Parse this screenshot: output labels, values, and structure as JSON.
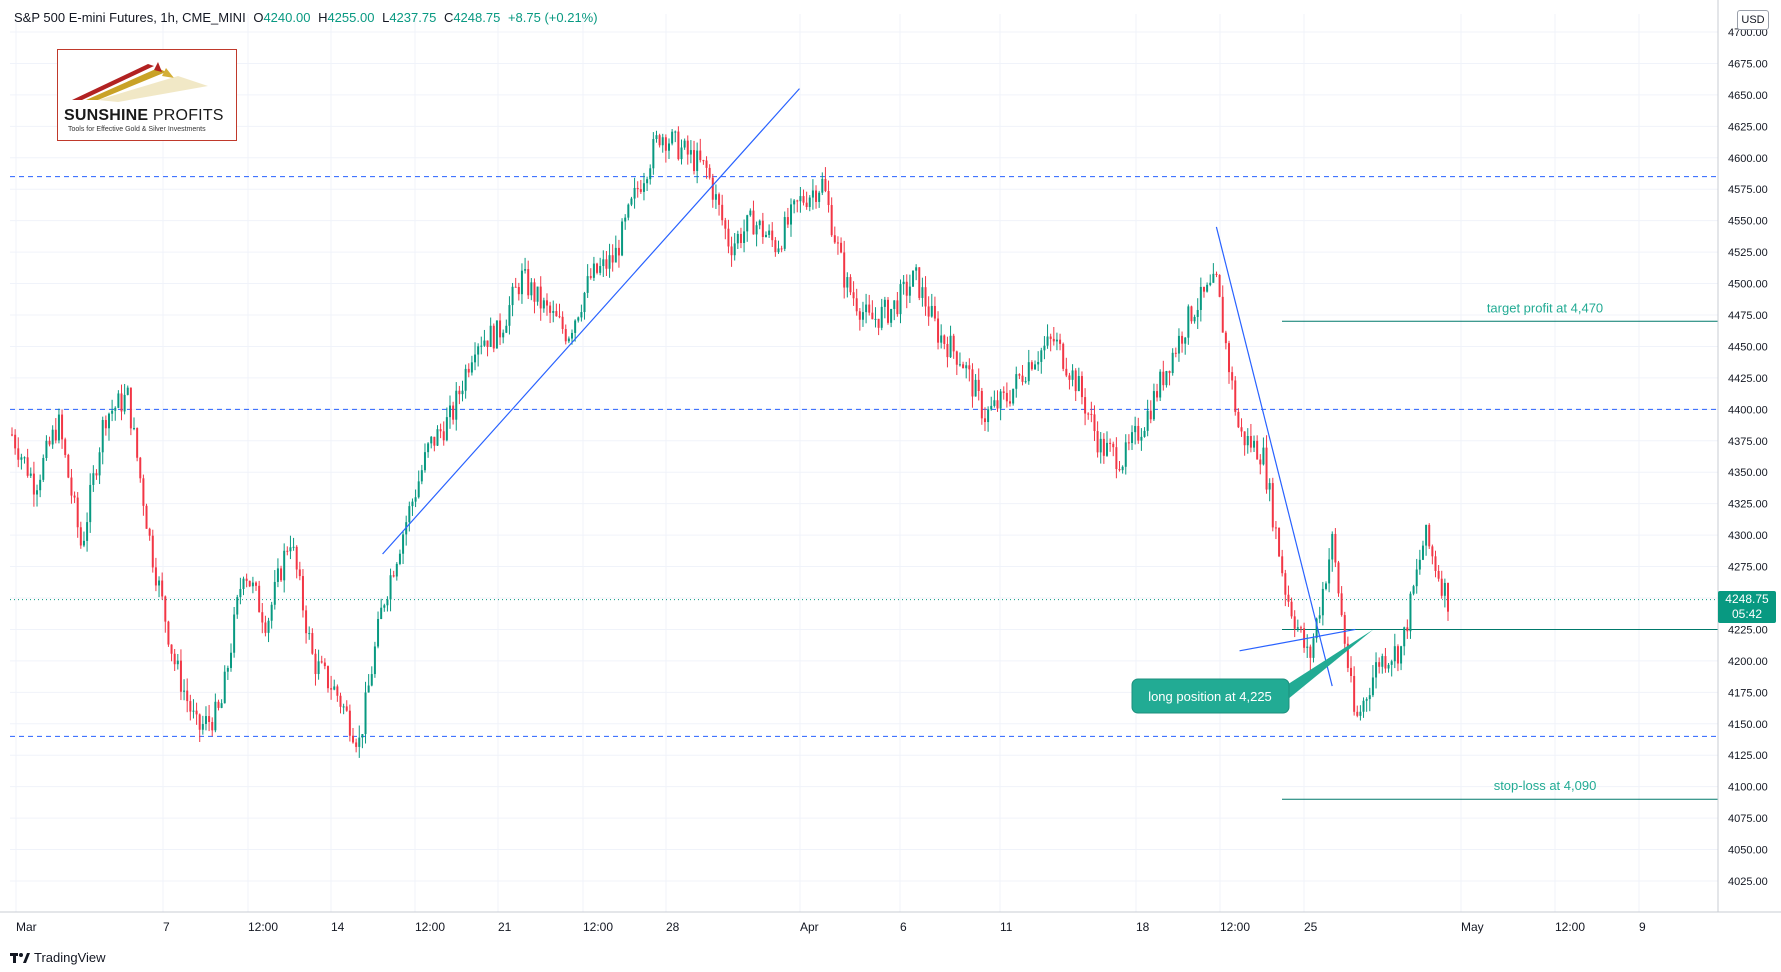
{
  "header": {
    "symbol": "S&P 500 E-mini Futures, 1h, CME_MINI",
    "o_label": "O",
    "o_value": "4240.00",
    "h_label": "H",
    "h_value": "4255.00",
    "l_label": "L",
    "l_value": "4237.75",
    "c_label": "C",
    "c_value": "4248.75",
    "change": "+8.75 (+0.21%)"
  },
  "currency_button": "USD",
  "logo": {
    "title_bold": "SUNSHINE",
    "title_light": " PROFITS",
    "subtitle": "Tools for Effective Gold & Silver Investments"
  },
  "footer": {
    "brand": "TradingView"
  },
  "last_price": {
    "value": "4248.75",
    "countdown": "05:42"
  },
  "colors": {
    "up": "#089981",
    "down": "#f23645",
    "trend": "#2962ff",
    "level": "#2962ff",
    "annotation": "#22ab94",
    "grid": "#f0f3fa",
    "text": "#131722"
  },
  "chart_data": {
    "type": "candlestick",
    "title": "",
    "xlabel": "",
    "ylabel": "",
    "ylim": [
      4000,
      4710
    ],
    "y_ticks": [
      4025,
      4050,
      4075,
      4100,
      4125,
      4150,
      4175,
      4200,
      4225,
      4250,
      4275,
      4300,
      4325,
      4350,
      4375,
      4400,
      4425,
      4450,
      4475,
      4500,
      4525,
      4550,
      4575,
      4600,
      4625,
      4650,
      4675,
      4700
    ],
    "y_tick_labels": [
      "4025.00",
      "4050.00",
      "4075.00",
      "4100.00",
      "4125.00",
      "4150.00",
      "4175.00",
      "4200.00",
      "4225.00",
      "4250.00",
      "4275.00",
      "4300.00",
      "4325.00",
      "4350.00",
      "4375.00",
      "4400.00",
      "4425.00",
      "4450.00",
      "4475.00",
      "4500.00",
      "4525.00",
      "4550.00",
      "4575.00",
      "4600.00",
      "4625.00",
      "4650.00",
      "4675.00",
      "4700.00"
    ],
    "x_tick_labels": [
      "Mar",
      "7",
      "12:00",
      "14",
      "12:00",
      "21",
      "12:00",
      "28",
      "Apr",
      "6",
      "11",
      "18",
      "12:00",
      "25",
      "May",
      "12:00",
      "9"
    ],
    "grid": true,
    "last_price": 4248.75,
    "path": [
      [
        "Mar 1",
        4380
      ],
      [
        "Mar 2",
        4340
      ],
      [
        "Mar 3",
        4390
      ],
      [
        "Mar 4",
        4290
      ],
      [
        "Mar 5",
        4395
      ],
      [
        "Mar 6",
        4410
      ],
      [
        "Mar 7",
        4290
      ],
      [
        "Mar 8",
        4200
      ],
      [
        "Mar 9",
        4145
      ],
      [
        "Mar 10",
        4160
      ],
      [
        "Mar 11",
        4275
      ],
      [
        "Mar 12",
        4230
      ],
      [
        "Mar 13",
        4300
      ],
      [
        "Mar 14",
        4200
      ],
      [
        "Mar 15",
        4175
      ],
      [
        "Mar 16",
        4135
      ],
      [
        "Mar 17",
        4245
      ],
      [
        "Mar 18",
        4310
      ],
      [
        "Mar 19",
        4370
      ],
      [
        "Mar 20",
        4395
      ],
      [
        "Mar 21",
        4455
      ],
      [
        "Mar 22",
        4460
      ],
      [
        "Mar 23",
        4505
      ],
      [
        "Mar 24",
        4480
      ],
      [
        "Mar 25",
        4460
      ],
      [
        "Mar 26",
        4505
      ],
      [
        "Mar 27",
        4520
      ],
      [
        "Mar 28",
        4575
      ],
      [
        "Mar 29",
        4620
      ],
      [
        "Mar 30",
        4605
      ],
      [
        "Mar 31",
        4590
      ],
      [
        "Apr 1",
        4530
      ],
      [
        "Apr 2",
        4550
      ],
      [
        "Apr 3",
        4530
      ],
      [
        "Apr 4",
        4565
      ],
      [
        "Apr 5",
        4580
      ],
      [
        "Apr 6",
        4500
      ],
      [
        "Apr 7",
        4470
      ],
      [
        "Apr 8",
        4480
      ],
      [
        "Apr 9",
        4505
      ],
      [
        "Apr 10",
        4460
      ],
      [
        "Apr 11",
        4440
      ],
      [
        "Apr 12",
        4395
      ],
      [
        "Apr 13",
        4410
      ],
      [
        "Apr 14",
        4440
      ],
      [
        "Apr 15",
        4455
      ],
      [
        "Apr 16",
        4420
      ],
      [
        "Apr 17",
        4370
      ],
      [
        "Apr 18",
        4360
      ],
      [
        "Apr 19",
        4395
      ],
      [
        "Apr 20",
        4440
      ],
      [
        "Apr 21",
        4480
      ],
      [
        "Apr 22",
        4500
      ],
      [
        "Apr 23",
        4380
      ],
      [
        "Apr 24",
        4365
      ],
      [
        "Apr 25",
        4255
      ],
      [
        "Apr 26",
        4200
      ],
      [
        "Apr 27",
        4295
      ],
      [
        "Apr 28",
        4150
      ],
      [
        "Apr 29",
        4200
      ],
      [
        "Apr 30",
        4210
      ],
      [
        "May 1",
        4300
      ],
      [
        "May 2",
        4248.75
      ]
    ],
    "horizontal_levels": [
      {
        "price": 4585,
        "style": "dashed"
      },
      {
        "price": 4400,
        "style": "dashed"
      },
      {
        "price": 4140,
        "style": "dashed"
      },
      {
        "price": 4470,
        "style": "solid",
        "label": "target profit at 4,470"
      },
      {
        "price": 4225,
        "style": "solid"
      },
      {
        "price": 4090,
        "style": "solid",
        "label": "stop-loss at 4,090"
      }
    ],
    "trend_lines": [
      {
        "from": [
          "Mar 17",
          4285
        ],
        "to": [
          "Apr 4",
          4655
        ]
      },
      {
        "from": [
          "Apr 22",
          4545
        ],
        "to": [
          "Apr 27",
          4180
        ]
      },
      {
        "from": [
          "Apr 23",
          4208
        ],
        "to": [
          "Apr 28",
          4225
        ]
      }
    ],
    "annotations": [
      {
        "text": "long position at 4,225",
        "price": 4225
      }
    ]
  }
}
